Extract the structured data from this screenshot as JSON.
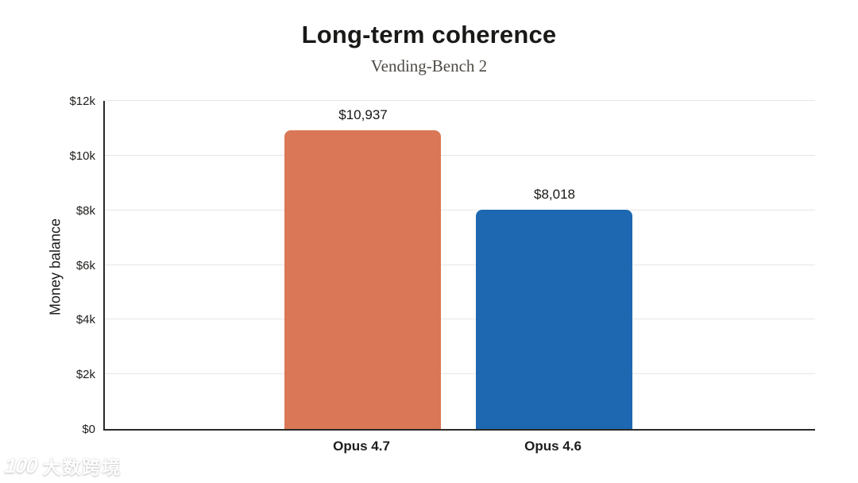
{
  "title": "Long-term coherence",
  "subtitle": "Vending-Bench 2",
  "chart_data": {
    "type": "bar",
    "categories": [
      "Opus 4.7",
      "Opus 4.6"
    ],
    "values": [
      10937,
      8018
    ],
    "value_labels": [
      "$10,937",
      "$8,018"
    ],
    "bar_colors": [
      "#D97757",
      "#1E68B2"
    ],
    "title": "Long-term coherence",
    "subtitle": "Vending-Bench 2",
    "xlabel": "",
    "ylabel": "Money balance",
    "ylim": [
      0,
      12000
    ],
    "ytick_interval": 2000,
    "ytick_labels": [
      "$0",
      "$2k",
      "$4k",
      "$6k",
      "$8k",
      "$10k",
      "$12k"
    ],
    "grid": true,
    "legend": "none"
  },
  "colors": {
    "axis": "#2a2a29",
    "grid": "#e8e6e3",
    "title_text": "#191917",
    "subtitle_text": "#4e4a44",
    "bar_opus_47": "#D97757",
    "bar_opus_46": "#1E68B2",
    "background": "#ffffff"
  },
  "watermark": {
    "logo": "100",
    "text": "大数跨境"
  }
}
